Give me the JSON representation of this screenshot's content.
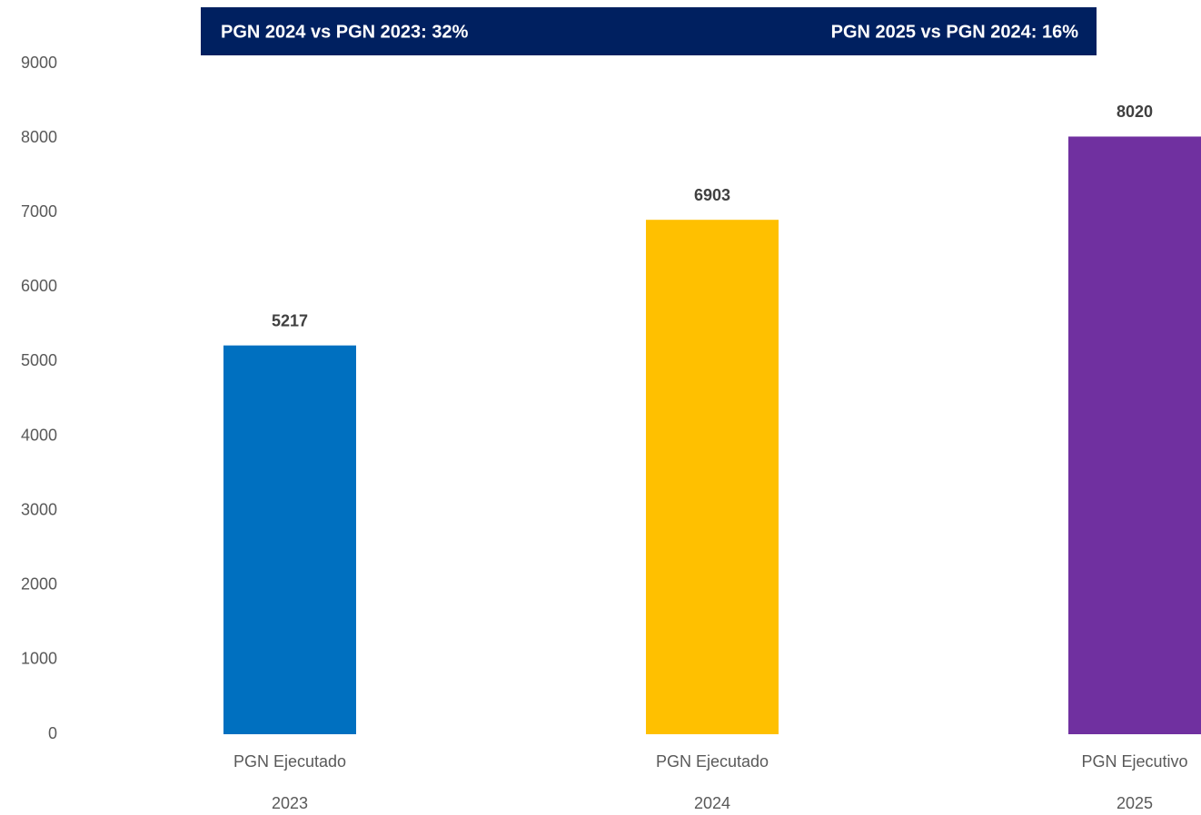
{
  "chart_data": {
    "type": "bar",
    "annotations": [
      "PGN 2024 vs PGN 2023: 32%",
      "PGN 2025 vs PGN 2024: 16%"
    ],
    "categories": [
      [
        "PGN Ejecutado",
        "2023"
      ],
      [
        "PGN Ejecutado",
        "2024"
      ],
      [
        "PGN Ejecutivo",
        "2025"
      ]
    ],
    "values": [
      5217,
      6903,
      8020
    ],
    "colors": [
      "#0070c0",
      "#ffc000",
      "#7030a0"
    ],
    "ylim": [
      0,
      9000
    ],
    "yticks": [
      0,
      1000,
      2000,
      3000,
      4000,
      5000,
      6000,
      7000,
      8000,
      9000
    ],
    "grid": false
  }
}
